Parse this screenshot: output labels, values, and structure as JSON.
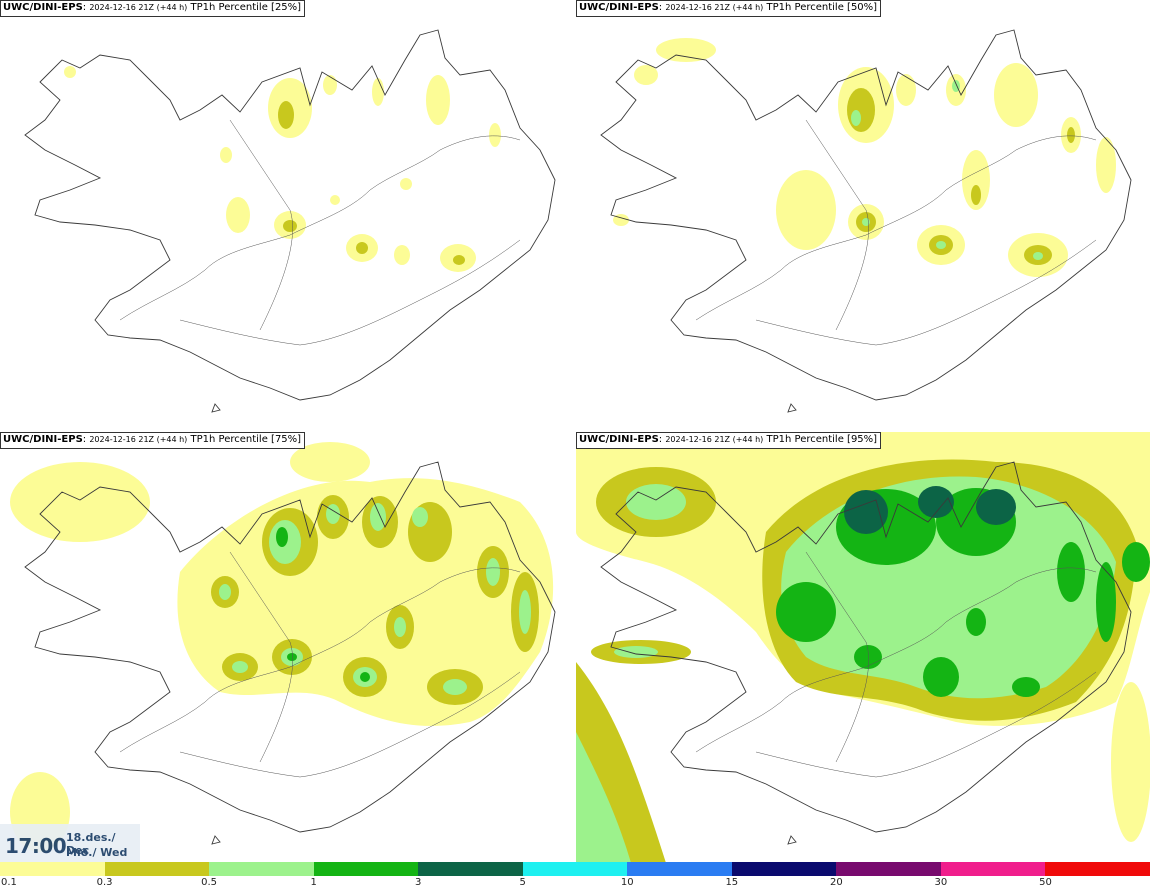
{
  "panels": [
    {
      "model": "UWC/DINI-EPS",
      "run": "2024-12-16 21Z (+44 h)",
      "field": "TP1h Percentile",
      "percentile": "[25%]"
    },
    {
      "model": "UWC/DINI-EPS",
      "run": "2024-12-16 21Z (+44 h)",
      "field": "TP1h Percentile",
      "percentile": "[50%]"
    },
    {
      "model": "UWC/DINI-EPS",
      "run": "2024-12-16 21Z (+44 h)",
      "field": "TP1h Percentile",
      "percentile": "[75%]"
    },
    {
      "model": "UWC/DINI-EPS",
      "run": "2024-12-16 21Z (+44 h)",
      "field": "TP1h Percentile",
      "percentile": "[95%]"
    }
  ],
  "valid_time": {
    "time": "17:00",
    "date_line1": "18.des./ Dec",
    "date_line2": "Mið./ Wed"
  },
  "legend": {
    "ticks": [
      "0.1",
      "0.3",
      "0.5",
      "1",
      "3",
      "5",
      "10",
      "15",
      "20",
      "30",
      "50"
    ],
    "colors": [
      "#fcfc96",
      "#c8c81e",
      "#9cf28c",
      "#14b414",
      "#0c6446",
      "#1ef0f0",
      "#2a7cf2",
      "#0a0a6e",
      "#780a6e",
      "#f01e8c",
      "#f00a0a"
    ]
  },
  "colors": {
    "coast": "#3a3a3a",
    "roads": "#555555"
  }
}
